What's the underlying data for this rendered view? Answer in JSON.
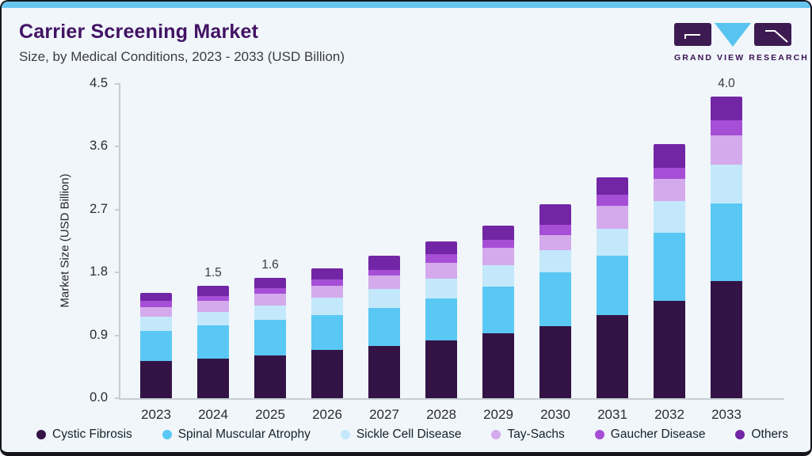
{
  "page": {
    "title": "Carrier Screening Market",
    "subtitle": "Size, by Medical Conditions, 2023 - 2033 (USD Billion)"
  },
  "logo": {
    "text": "GRAND VIEW RESEARCH",
    "purple": "#3d1b52",
    "blue": "#58c4ef"
  },
  "colors": {
    "card_background": "#f0f6fa",
    "top_strip": "#67c6ef",
    "title_purple": "#421263",
    "axis_line": "#c6ced4"
  },
  "chart_data": {
    "type": "bar",
    "stacked": true,
    "title": "Carrier Screening Market",
    "subtitle": "Size, by Medical Conditions, 2023 - 2033 (USD Billion)",
    "xlabel": "",
    "ylabel": "Market Size (USD Billion)",
    "ylim": [
      0,
      4.5
    ],
    "yticks": [
      0.0,
      0.9,
      1.8,
      2.7,
      3.6,
      4.5
    ],
    "grid": false,
    "legend_position": "bottom",
    "categories": [
      "2023",
      "2024",
      "2025",
      "2026",
      "2027",
      "2028",
      "2029",
      "2030",
      "2031",
      "2032",
      "2033"
    ],
    "series": [
      {
        "name": "Cystic Fibrosis",
        "color": "#331345",
        "values": [
          0.5,
          0.53,
          0.57,
          0.64,
          0.69,
          0.77,
          0.86,
          0.96,
          1.11,
          1.29,
          1.56
        ]
      },
      {
        "name": "Spinal Muscular Atrophy",
        "color": "#5ac8f4",
        "values": [
          0.4,
          0.44,
          0.47,
          0.47,
          0.51,
          0.56,
          0.62,
          0.71,
          0.79,
          0.91,
          1.03
        ]
      },
      {
        "name": "Sickle Cell Disease",
        "color": "#c4e8fb",
        "values": [
          0.18,
          0.18,
          0.19,
          0.23,
          0.25,
          0.26,
          0.29,
          0.3,
          0.35,
          0.42,
          0.52
        ]
      },
      {
        "name": "Tay-Sachs",
        "color": "#d4aaec",
        "values": [
          0.13,
          0.14,
          0.16,
          0.15,
          0.18,
          0.21,
          0.23,
          0.2,
          0.31,
          0.3,
          0.38
        ]
      },
      {
        "name": "Gaucher Disease",
        "color": "#a64fd6",
        "values": [
          0.08,
          0.07,
          0.07,
          0.09,
          0.08,
          0.12,
          0.11,
          0.14,
          0.15,
          0.14,
          0.2
        ]
      },
      {
        "name": "Others",
        "color": "#7226a5",
        "values": [
          0.11,
          0.13,
          0.14,
          0.15,
          0.18,
          0.16,
          0.19,
          0.27,
          0.23,
          0.32,
          0.32
        ]
      }
    ],
    "bar_total_labels": [
      "",
      "1.5",
      "1.6",
      "",
      "",
      "",
      "",
      "",
      "",
      "",
      "4.0"
    ]
  }
}
